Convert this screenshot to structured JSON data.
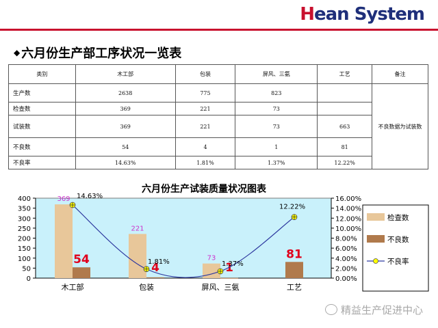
{
  "brand": {
    "first_letter": "H",
    "rest": "ean System"
  },
  "page_title": "六月份生产部工序状况一览表",
  "table": {
    "headers": [
      "类别",
      "木工部",
      "包装",
      "屏风、三氨",
      "工艺",
      "备注"
    ],
    "rows": [
      {
        "label": "生产数",
        "values": [
          "2638",
          "775",
          "823",
          ""
        ]
      },
      {
        "label": "检查数",
        "values": [
          "369",
          "221",
          "73",
          ""
        ]
      },
      {
        "label": "试装数",
        "values": [
          "369",
          "221",
          "73",
          "663"
        ]
      },
      {
        "label": "不良数",
        "values": [
          "54",
          "4",
          "1",
          "81"
        ]
      },
      {
        "label": "不良率",
        "values": [
          "14.63%",
          "1.81%",
          "1.37%",
          "12.22%"
        ]
      }
    ],
    "remark": "不良数据为试装数"
  },
  "chart_data": {
    "type": "bar",
    "title": "六月份生产试装质量状况图表",
    "categories": [
      "木工部",
      "包装",
      "屏风、三氨",
      "工艺"
    ],
    "series": [
      {
        "name": "检查数",
        "kind": "bar",
        "values": [
          369,
          221,
          73,
          null
        ],
        "labels": [
          "369",
          "221",
          "73",
          ""
        ],
        "color": "#e8c79a"
      },
      {
        "name": "不良数",
        "kind": "bar",
        "values": [
          54,
          4,
          1,
          81
        ],
        "labels": [
          "54",
          "4",
          "1",
          "81"
        ],
        "color": "#b07a4c"
      },
      {
        "name": "不良率",
        "kind": "line",
        "axis": "right",
        "values": [
          14.63,
          1.81,
          1.37,
          12.22
        ],
        "labels": [
          "14.63%",
          "1.81%",
          "1.37%",
          "12.22%"
        ],
        "color": "#2f3aa0"
      }
    ],
    "ylim": [
      0,
      400
    ],
    "y_ticks": [
      "0",
      "50",
      "100",
      "150",
      "200",
      "250",
      "300",
      "350",
      "400"
    ],
    "y2lim": [
      0,
      16
    ],
    "y2_ticks": [
      "0.00%",
      "2.00%",
      "4.00%",
      "6.00%",
      "8.00%",
      "10.00%",
      "12.00%",
      "14.00%",
      "16.00%"
    ],
    "legend_position": "right",
    "plot_background": "#c9f1fb"
  },
  "footer": {
    "text": "精益生产促进中心",
    "icon": "wechat-icon"
  }
}
